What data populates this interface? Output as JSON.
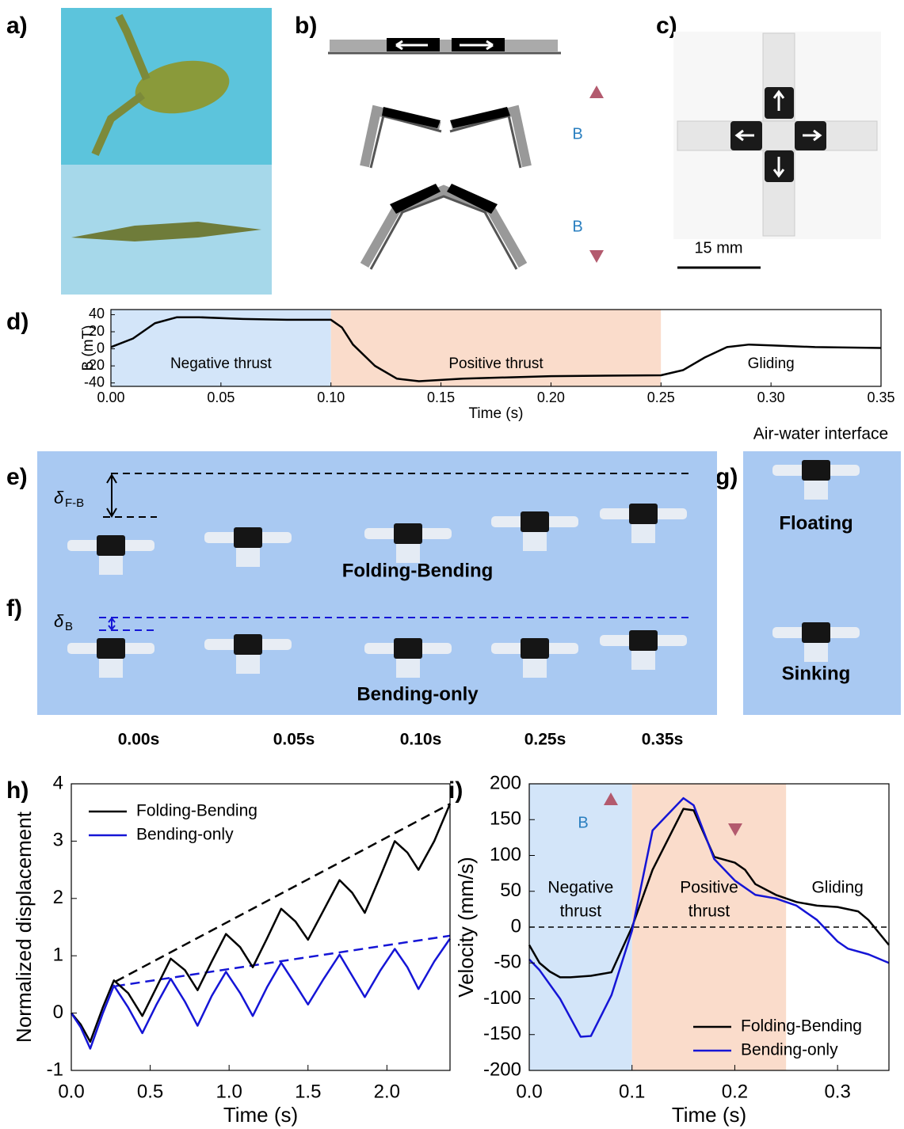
{
  "panel_labels": [
    "a)",
    "b)",
    "c)",
    "d)",
    "e)",
    "f)",
    "g)",
    "h)",
    "i)"
  ],
  "panel_b": {
    "field_labels": [
      "B",
      "B"
    ]
  },
  "panel_c": {
    "scale_bar": "15 mm"
  },
  "panel_ef": {
    "delta_fb": {
      "symbol": "δ",
      "subscript": "F-B"
    },
    "delta_b": {
      "symbol": "δ",
      "subscript": "B"
    },
    "labels": [
      "Folding-Bending",
      "Bending-only"
    ],
    "times": [
      "0.00s",
      "0.05s",
      "0.10s",
      "0.25s",
      "0.35s"
    ]
  },
  "panel_g": {
    "title": "Air-water interface",
    "labels": [
      "Floating",
      "Sinking"
    ]
  },
  "chart_data": [
    {
      "type": "line",
      "x_label": "Time (s)",
      "y_label": "B (mT)",
      "xlim": [
        0,
        0.35
      ],
      "ylim": [
        -44,
        46
      ],
      "xticks": [
        {
          "value": 0,
          "label": "0.00"
        },
        0.05,
        {
          "value": 0.1,
          "label": "0.10"
        },
        0.15,
        {
          "value": 0.2,
          "label": "0.20"
        },
        0.25,
        {
          "value": 0.3,
          "label": "0.30"
        },
        0.35
      ],
      "yticks": [
        -40,
        -20,
        0,
        20,
        40
      ],
      "regions": [
        {
          "range": [
            0,
            0.1
          ],
          "color": "#d3e5f9",
          "label": "Negative thrust"
        },
        {
          "range": [
            0.1,
            0.25
          ],
          "color": "#fadccb",
          "label": "Positive thrust"
        },
        {
          "range": [
            0.25,
            0.35
          ],
          "color": "#ffffff",
          "label": "Gliding"
        }
      ],
      "series": [
        {
          "color": "#000000",
          "x": [
            0,
            0.01,
            0.02,
            0.03,
            0.04,
            0.06,
            0.08,
            0.1,
            0.105,
            0.11,
            0.12,
            0.13,
            0.14,
            0.16,
            0.2,
            0.25,
            0.26,
            0.27,
            0.28,
            0.29,
            0.3,
            0.32,
            0.35
          ],
          "values": [
            2,
            12,
            30,
            37,
            37,
            35,
            34,
            34,
            25,
            5,
            -20,
            -35,
            -38,
            -35,
            -32,
            -31,
            -25,
            -10,
            2,
            5,
            4,
            2,
            1
          ]
        }
      ]
    },
    {
      "type": "line",
      "x_label": "Time (s)",
      "y_label": "Normalized displacement",
      "xlim": [
        0,
        2.4
      ],
      "ylim": [
        -1,
        4
      ],
      "xticks": [
        {
          "value": 0,
          "label": "0.0"
        },
        0.5,
        {
          "value": 1,
          "label": "1.0"
        },
        1.5,
        {
          "value": 2,
          "label": "2.0"
        }
      ],
      "yticks": [
        -1,
        0,
        1,
        2,
        3,
        4
      ],
      "legend": "upper left",
      "trend_lines": [
        {
          "x": [
            0.28,
            2.4
          ],
          "values": [
            0.55,
            3.65
          ],
          "color": "#000000"
        },
        {
          "x": [
            0.28,
            2.4
          ],
          "values": [
            0.47,
            1.35
          ],
          "color": "#1515d6"
        }
      ],
      "series": [
        {
          "name": "Folding-Bending",
          "color": "#000000",
          "x": [
            0,
            0.06,
            0.12,
            0.2,
            0.27,
            0.36,
            0.45,
            0.54,
            0.63,
            0.72,
            0.8,
            0.89,
            0.98,
            1.07,
            1.15,
            1.24,
            1.33,
            1.42,
            1.5,
            1.6,
            1.7,
            1.78,
            1.86,
            1.96,
            2.05,
            2.13,
            2.2,
            2.3,
            2.4
          ],
          "values": [
            0,
            -0.2,
            -0.5,
            0.1,
            0.57,
            0.35,
            -0.05,
            0.45,
            0.95,
            0.75,
            0.4,
            0.9,
            1.38,
            1.15,
            0.8,
            1.3,
            1.82,
            1.6,
            1.28,
            1.8,
            2.32,
            2.1,
            1.75,
            2.4,
            3.0,
            2.8,
            2.5,
            3.0,
            3.65
          ]
        },
        {
          "name": "Bending-only",
          "color": "#1515d6",
          "x": [
            0,
            0.06,
            0.12,
            0.2,
            0.27,
            0.36,
            0.45,
            0.54,
            0.63,
            0.72,
            0.8,
            0.89,
            0.98,
            1.07,
            1.15,
            1.24,
            1.33,
            1.42,
            1.5,
            1.6,
            1.7,
            1.78,
            1.86,
            1.96,
            2.05,
            2.13,
            2.2,
            2.3,
            2.4
          ],
          "values": [
            0,
            -0.25,
            -0.62,
            0.0,
            0.48,
            0.1,
            -0.35,
            0.15,
            0.6,
            0.2,
            -0.22,
            0.3,
            0.72,
            0.35,
            -0.05,
            0.45,
            0.88,
            0.5,
            0.15,
            0.6,
            1.02,
            0.65,
            0.28,
            0.75,
            1.12,
            0.8,
            0.42,
            0.9,
            1.3
          ]
        }
      ]
    },
    {
      "type": "line",
      "x_label": "Time (s)",
      "y_label": "Velocity (mm/s)",
      "xlim": [
        0,
        0.35
      ],
      "ylim": [
        -200,
        200
      ],
      "xticks": [
        {
          "value": 0,
          "label": "0.0"
        },
        0.1,
        0.2,
        0.3
      ],
      "yticks": [
        -200,
        -150,
        -100,
        -50,
        0,
        50,
        100,
        150,
        200
      ],
      "legend": "lower right",
      "reference_line": 0,
      "annotation": "B",
      "regions": [
        {
          "range": [
            0,
            0.1
          ],
          "color": "#d3e5f9",
          "label_lines": [
            "Negative",
            "thrust"
          ]
        },
        {
          "range": [
            0.1,
            0.25
          ],
          "color": "#fadccb",
          "label_lines": [
            "Positive",
            "thrust"
          ]
        },
        {
          "range": [
            0.25,
            0.35
          ],
          "color": "#ffffff",
          "label_lines": [
            "Gliding"
          ]
        }
      ],
      "series": [
        {
          "name": "Folding-Bending",
          "color": "#000000",
          "x": [
            0,
            0.01,
            0.02,
            0.03,
            0.04,
            0.06,
            0.08,
            0.1,
            0.12,
            0.15,
            0.16,
            0.18,
            0.2,
            0.21,
            0.22,
            0.24,
            0.26,
            0.28,
            0.3,
            0.32,
            0.33,
            0.35
          ],
          "values": [
            -25,
            -50,
            -62,
            -70,
            -70,
            -68,
            -63,
            0,
            80,
            165,
            163,
            98,
            90,
            80,
            60,
            45,
            35,
            30,
            28,
            22,
            10,
            -25
          ]
        },
        {
          "name": "Bending-only",
          "color": "#1515d6",
          "x": [
            0,
            0.01,
            0.03,
            0.05,
            0.06,
            0.08,
            0.1,
            0.12,
            0.13,
            0.15,
            0.16,
            0.18,
            0.2,
            0.22,
            0.24,
            0.26,
            0.28,
            0.3,
            0.31,
            0.33,
            0.35
          ],
          "values": [
            -45,
            -60,
            -100,
            -153,
            -152,
            -95,
            -5,
            135,
            150,
            180,
            170,
            95,
            65,
            45,
            40,
            30,
            10,
            -20,
            -30,
            -38,
            -50
          ]
        }
      ]
    }
  ]
}
